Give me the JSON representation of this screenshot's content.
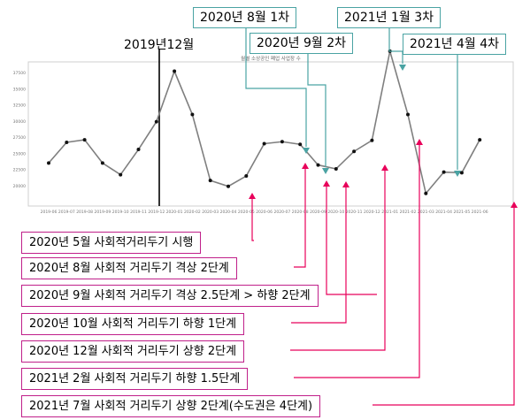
{
  "chart_data": {
    "type": "line",
    "title": "월별 소상공인 폐업 사업장 수",
    "xlabel": "",
    "ylabel": "",
    "x": [
      "2019-06",
      "2019-07",
      "2019-08",
      "2019-09",
      "2019-10",
      "2019-11",
      "2019-12",
      "2020-01",
      "2020-02",
      "2020-03",
      "2020-04",
      "2020-05",
      "2020-06",
      "2020-07",
      "2020-08",
      "2020-09",
      "2020-10",
      "2020-11",
      "2020-12",
      "2021-01",
      "2021-02",
      "2021-03",
      "2021-04",
      "2021-05",
      "2021-06"
    ],
    "values": [
      23500,
      26700,
      27100,
      23500,
      21700,
      25600,
      29900,
      37700,
      31000,
      20800,
      19900,
      21500,
      26500,
      26800,
      26400,
      23200,
      22600,
      25300,
      27000,
      40800,
      31000,
      18800,
      22100,
      22000,
      27100
    ],
    "yticks": [
      "20000",
      "22500",
      "25000",
      "27500",
      "30000",
      "32500",
      "35000",
      "37500"
    ],
    "ylim": [
      18000,
      40000
    ],
    "grid": false,
    "line_color": "#7f7f7f",
    "marker_color": "#111111"
  },
  "annotations": {
    "vline_label": "2019년12월",
    "top_labels": [
      "2020년 8월 1차",
      "2020년 9월  2차",
      "2021년 1월  3차",
      "2021년 4월  4차"
    ],
    "bottom_labels": [
      "2020년 5월  사회적거리두기 시행",
      "2020년 8월  사회적 거리두기 격상 2단계",
      "2020년 9월  사회적 거리두기 격상 2.5단계 > 하향 2단계",
      "2020년 10월  사회적 거리두기 하향 1단계",
      "2020년 12월  사회적 거리두기 상향 2단계",
      "2021년 2월  사회적 거리두기 하향 1.5단계",
      "2021년 7월  사회적 거리두기 상향 2단계(수도권은 4단계)"
    ],
    "teal_color": "#4aa3a3",
    "pink_color": "#e8005a",
    "pink_border": "#c0208a"
  }
}
